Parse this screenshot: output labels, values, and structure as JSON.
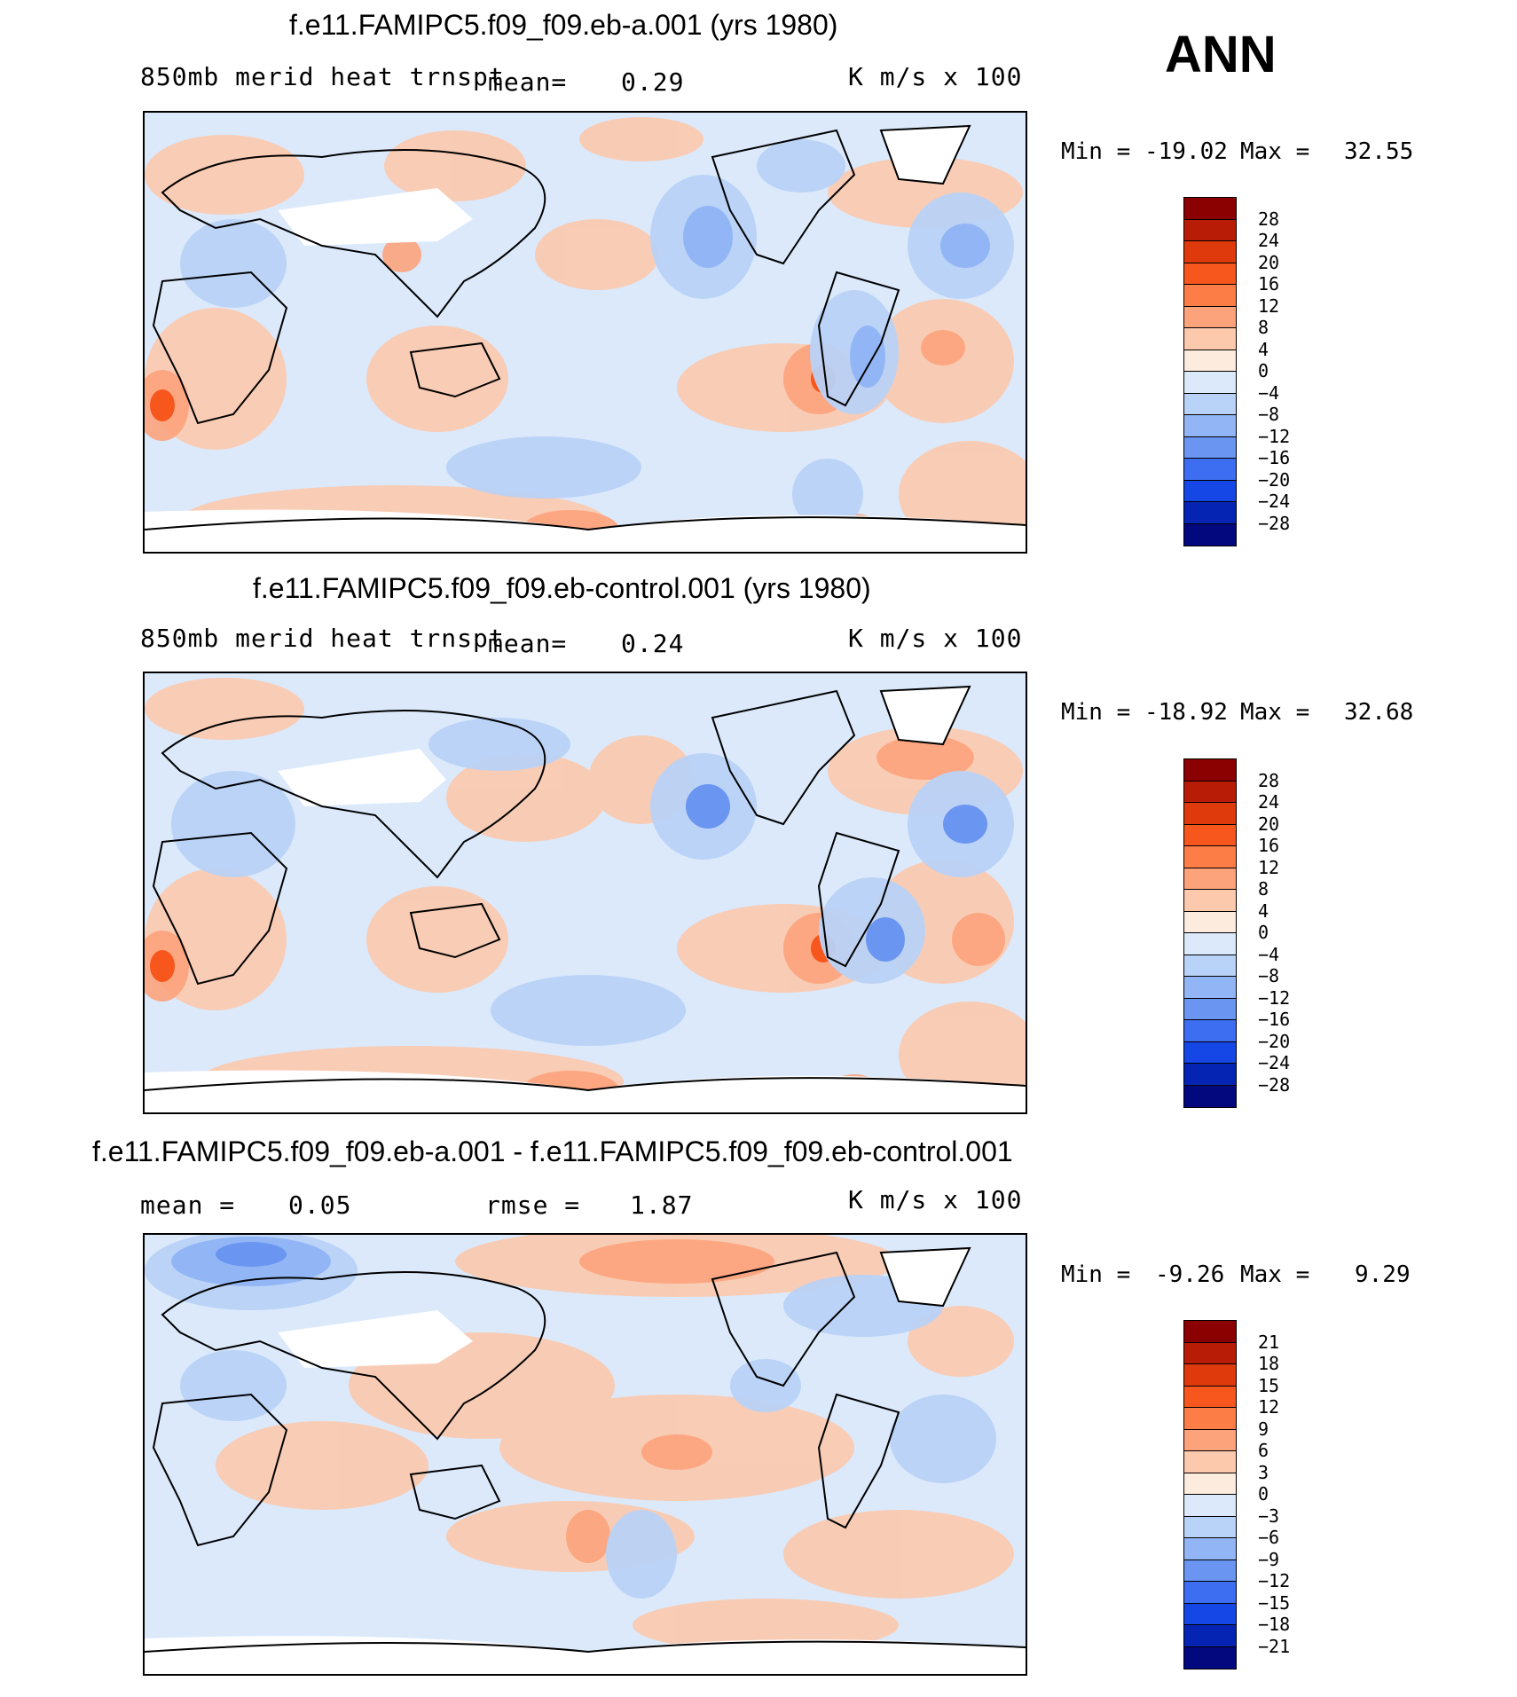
{
  "season": "ANN",
  "units": "K m/s x 100",
  "panels": [
    {
      "id": "a",
      "title": "f.e11.FAMIPC5.f09_f09.eb-a.001 (yrs 1980)",
      "variable": "850mb merid heat trnspt",
      "mean_label": "mean=",
      "mean": "0.29",
      "units": "K m/s x 100",
      "min_label": "Min =",
      "min": "-19.02",
      "max_label": "Max =",
      "max": "32.55"
    },
    {
      "id": "control",
      "title": "f.e11.FAMIPC5.f09_f09.eb-control.001 (yrs 1980)",
      "variable": "850mb merid heat trnspt",
      "mean_label": "mean=",
      "mean": "0.24",
      "units": "K m/s x 100",
      "min_label": "Min =",
      "min": "-18.92",
      "max_label": "Max =",
      "max": "32.68"
    },
    {
      "id": "diff",
      "title": "f.e11.FAMIPC5.f09_f09.eb-a.001 - f.e11.FAMIPC5.f09_f09.eb-control.001",
      "mean_label": "mean =",
      "mean": "0.05",
      "rmse_label": "rmse =",
      "rmse": "1.87",
      "units": "K m/s x 100",
      "min_label": "Min =",
      "min": "-9.26",
      "max_label": "Max =",
      "max": "9.29"
    }
  ],
  "colorbars": {
    "main_labels": [
      "28",
      "24",
      "20",
      "16",
      "12",
      "8",
      "4",
      "0",
      "-4",
      "-8",
      "-12",
      "-16",
      "-20",
      "-24",
      "-28"
    ],
    "diff_labels": [
      "21",
      "18",
      "15",
      "12",
      "9",
      "6",
      "3",
      "0",
      "-3",
      "-6",
      "-9",
      "-12",
      "-15",
      "-18",
      "-21"
    ],
    "colors": [
      "#8b0000",
      "#b91c06",
      "#df3a0c",
      "#f7561d",
      "#fc7e46",
      "#fca37c",
      "#fcc9ad",
      "#fdebde",
      "#dbe9fb",
      "#b9d2f7",
      "#92b6f5",
      "#6a96f2",
      "#3d6df0",
      "#1447e6",
      "#0624b3",
      "#03087f"
    ]
  },
  "colors": {
    "land_outline": "#000000",
    "missing": "#ffffff"
  }
}
